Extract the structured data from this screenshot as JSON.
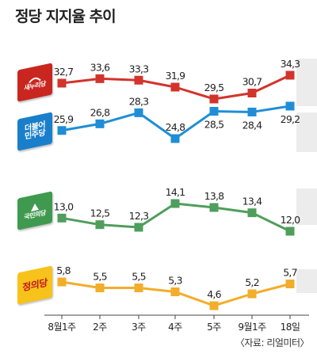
{
  "title": "정당 지지율 추이",
  "source": "〈자료: 리얼미터〉",
  "chart_data": {
    "type": "line",
    "title": "정당 지지율 추이",
    "categories": [
      "8월1주",
      "2주",
      "3주",
      "4주",
      "5주",
      "9월1주",
      "18일"
    ],
    "grid": false,
    "series": [
      {
        "name": "새누리당",
        "color": "#d2342c",
        "values": [
          32.7,
          33.6,
          33.3,
          31.9,
          29.5,
          30.7,
          34.3
        ]
      },
      {
        "name": "더불어민주당",
        "color": "#1f8ed6",
        "values": [
          25.9,
          26.8,
          28.3,
          24.8,
          28.5,
          28.4,
          29.2
        ]
      },
      {
        "name": "국민의당",
        "color": "#4f9e5c",
        "values": [
          13.0,
          12.5,
          12.3,
          14.1,
          13.8,
          13.4,
          12.0
        ]
      },
      {
        "name": "정의당",
        "color": "#f2ad2a",
        "values": [
          5.8,
          5.5,
          5.5,
          5.3,
          4.6,
          5.2,
          5.7
        ]
      }
    ]
  },
  "badges": [
    {
      "name": "새누리당",
      "line1": "새누리당",
      "line2": "",
      "color": "#c9261f",
      "icon": "saenuri-logo-icon"
    },
    {
      "name": "더불어민주당",
      "line1": "더불어",
      "line2": "민주당",
      "color": "#1a7fcb",
      "icon": ""
    },
    {
      "name": "국민의당",
      "line1": "국민의당",
      "line2": "",
      "color": "#3f9a4f",
      "icon": "kookmin-logo-icon"
    },
    {
      "name": "정의당",
      "line1": "정의당",
      "line2": "",
      "color": "#f7c21a",
      "icon": ""
    }
  ]
}
